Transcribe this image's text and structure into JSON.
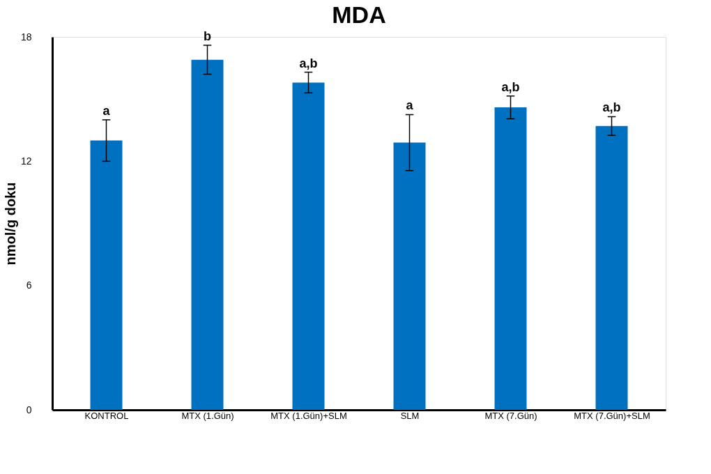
{
  "chart_data": {
    "type": "bar",
    "title": "MDA",
    "ylabel": "nmol/g doku",
    "categories": [
      "KONTROL",
      "MTX (1.Gün)",
      "MTX (1.Gün)+SLM",
      "SLM",
      "MTX (7.Gün)",
      "MTX (7.Gün)+SLM"
    ],
    "values": [
      13.0,
      16.9,
      15.8,
      12.9,
      14.6,
      13.7
    ],
    "errors": [
      1.0,
      0.7,
      0.5,
      1.35,
      0.55,
      0.45
    ],
    "color": "#0070c0",
    "ylim": [
      0,
      18
    ],
    "yticks": [
      0,
      6,
      12,
      18
    ],
    "grid": false,
    "annotations": [
      {
        "text": "a",
        "x": "KONTROL",
        "y": 14.0
      },
      {
        "text": "b",
        "x": "MTX (1.Gün)",
        "y": 17.6
      },
      {
        "text": "a,b",
        "x": "MTX (1.Gün)+SLM",
        "y": 16.3
      },
      {
        "text": "a",
        "x": "SLM",
        "y": 14.25
      },
      {
        "text": "a,b",
        "x": "MTX (7.Gün)",
        "y": 15.15
      },
      {
        "text": "a,b",
        "x": "MTX (7.Gün)+SLM",
        "y": 14.15
      }
    ]
  }
}
